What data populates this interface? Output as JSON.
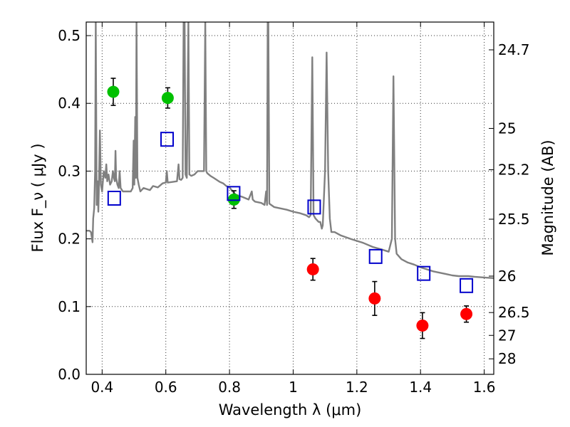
{
  "chart_data": {
    "type": "scatter",
    "xlabel": "Wavelength  λ (μm)",
    "ylabel": "Flux  F_ν  ( μJy )",
    "ylabel_right": "Magnitude (AB)",
    "xlim": [
      0.35,
      1.63
    ],
    "ylim": [
      0.0,
      0.52
    ],
    "grid": true,
    "x_ticks": [
      0.4,
      0.6,
      0.8,
      1.0,
      1.2,
      1.4,
      1.6
    ],
    "x_tick_labels": [
      "0.4",
      "0.6",
      "0.8",
      "1",
      "1.2",
      "1.4",
      "1.6"
    ],
    "y_ticks": [
      0.0,
      0.1,
      0.2,
      0.3,
      0.4,
      0.5
    ],
    "y_tick_labels": [
      "0.0",
      "0.1",
      "0.2",
      "0.3",
      "0.4",
      "0.5"
    ],
    "right_ticks": [
      {
        "label": "24.7",
        "flux": 0.479
      },
      {
        "label": "25",
        "flux": 0.363
      },
      {
        "label": "25.2",
        "flux": 0.302
      },
      {
        "label": "25.5",
        "flux": 0.229
      },
      {
        "label": "26",
        "flux": 0.145
      },
      {
        "label": "26.5",
        "flux": 0.0912
      },
      {
        "label": "27",
        "flux": 0.0575
      },
      {
        "label": "28",
        "flux": 0.0229
      }
    ],
    "series": [
      {
        "marker": "circle",
        "color": "#00c000",
        "points": [
          {
            "x": 0.435,
            "y": 0.417,
            "err": 0.02
          },
          {
            "x": 0.606,
            "y": 0.408,
            "err": 0.015
          },
          {
            "x": 0.814,
            "y": 0.258,
            "err": 0.013
          }
        ]
      },
      {
        "marker": "circle",
        "color": "#ff0000",
        "points": [
          {
            "x": 1.062,
            "y": 0.155,
            "err": 0.016
          },
          {
            "x": 1.256,
            "y": 0.112,
            "err": 0.025
          },
          {
            "x": 1.406,
            "y": 0.072,
            "err": 0.019
          },
          {
            "x": 1.544,
            "y": 0.089,
            "err": 0.012
          }
        ]
      },
      {
        "marker": "open-square",
        "color": "#0000cc",
        "points": [
          {
            "x": 0.438,
            "y": 0.26
          },
          {
            "x": 0.604,
            "y": 0.347
          },
          {
            "x": 0.813,
            "y": 0.267
          },
          {
            "x": 1.066,
            "y": 0.247
          },
          {
            "x": 1.259,
            "y": 0.174
          },
          {
            "x": 1.41,
            "y": 0.149
          },
          {
            "x": 1.544,
            "y": 0.131
          }
        ]
      },
      {
        "marker": "line",
        "color": "#808080",
        "points": [
          [
            0.35,
            0.212
          ],
          [
            0.36,
            0.212
          ],
          [
            0.365,
            0.21
          ],
          [
            0.37,
            0.195
          ],
          [
            0.372,
            0.23
          ],
          [
            0.375,
            0.245
          ],
          [
            0.378,
            0.3
          ],
          [
            0.38,
            0.52
          ],
          [
            0.383,
            0.25
          ],
          [
            0.386,
            0.285
          ],
          [
            0.388,
            0.24
          ],
          [
            0.39,
            0.28
          ],
          [
            0.393,
            0.36
          ],
          [
            0.396,
            0.28
          ],
          [
            0.4,
            0.27
          ],
          [
            0.405,
            0.3
          ],
          [
            0.41,
            0.29
          ],
          [
            0.413,
            0.31
          ],
          [
            0.416,
            0.285
          ],
          [
            0.42,
            0.295
          ],
          [
            0.425,
            0.28
          ],
          [
            0.43,
            0.285
          ],
          [
            0.434,
            0.3
          ],
          [
            0.437,
            0.29
          ],
          [
            0.44,
            0.285
          ],
          [
            0.442,
            0.33
          ],
          [
            0.444,
            0.29
          ],
          [
            0.448,
            0.28
          ],
          [
            0.452,
            0.275
          ],
          [
            0.455,
            0.3
          ],
          [
            0.458,
            0.275
          ],
          [
            0.465,
            0.27
          ],
          [
            0.48,
            0.27
          ],
          [
            0.49,
            0.27
          ],
          [
            0.496,
            0.275
          ],
          [
            0.499,
            0.345
          ],
          [
            0.501,
            0.28
          ],
          [
            0.504,
            0.38
          ],
          [
            0.506,
            0.29
          ],
          [
            0.508,
            0.52
          ],
          [
            0.511,
            0.29
          ],
          [
            0.515,
            0.28
          ],
          [
            0.52,
            0.27
          ],
          [
            0.53,
            0.275
          ],
          [
            0.55,
            0.272
          ],
          [
            0.56,
            0.278
          ],
          [
            0.575,
            0.276
          ],
          [
            0.59,
            0.282
          ],
          [
            0.6,
            0.283
          ],
          [
            0.603,
            0.3
          ],
          [
            0.606,
            0.283
          ],
          [
            0.62,
            0.284
          ],
          [
            0.635,
            0.285
          ],
          [
            0.64,
            0.31
          ],
          [
            0.643,
            0.288
          ],
          [
            0.648,
            0.287
          ],
          [
            0.653,
            0.29
          ],
          [
            0.656,
            0.52
          ],
          [
            0.659,
            0.52
          ],
          [
            0.662,
            0.295
          ],
          [
            0.666,
            0.29
          ],
          [
            0.671,
            0.52
          ],
          [
            0.674,
            0.295
          ],
          [
            0.68,
            0.293
          ],
          [
            0.69,
            0.295
          ],
          [
            0.7,
            0.3
          ],
          [
            0.72,
            0.3
          ],
          [
            0.724,
            0.52
          ],
          [
            0.727,
            0.3
          ],
          [
            0.73,
            0.297
          ],
          [
            0.74,
            0.293
          ],
          [
            0.75,
            0.29
          ],
          [
            0.77,
            0.284
          ],
          [
            0.78,
            0.282
          ],
          [
            0.79,
            0.278
          ],
          [
            0.8,
            0.276
          ],
          [
            0.81,
            0.27
          ],
          [
            0.82,
            0.265
          ],
          [
            0.84,
            0.262
          ],
          [
            0.86,
            0.258
          ],
          [
            0.87,
            0.27
          ],
          [
            0.873,
            0.258
          ],
          [
            0.88,
            0.255
          ],
          [
            0.9,
            0.253
          ],
          [
            0.91,
            0.25
          ],
          [
            0.915,
            0.27
          ],
          [
            0.918,
            0.25
          ],
          [
            0.92,
            0.52
          ],
          [
            0.922,
            0.52
          ],
          [
            0.925,
            0.252
          ],
          [
            0.94,
            0.247
          ],
          [
            0.96,
            0.245
          ],
          [
            0.98,
            0.243
          ],
          [
            1.0,
            0.24
          ],
          [
            1.02,
            0.238
          ],
          [
            1.04,
            0.235
          ],
          [
            1.05,
            0.232
          ],
          [
            1.055,
            0.235
          ],
          [
            1.06,
            0.468
          ],
          [
            1.064,
            0.235
          ],
          [
            1.07,
            0.23
          ],
          [
            1.08,
            0.225
          ],
          [
            1.085,
            0.225
          ],
          [
            1.09,
            0.215
          ],
          [
            1.093,
            0.22
          ],
          [
            1.1,
            0.3
          ],
          [
            1.105,
            0.475
          ],
          [
            1.11,
            0.3
          ],
          [
            1.115,
            0.23
          ],
          [
            1.12,
            0.21
          ],
          [
            1.13,
            0.21
          ],
          [
            1.15,
            0.205
          ],
          [
            1.18,
            0.2
          ],
          [
            1.2,
            0.197
          ],
          [
            1.22,
            0.194
          ],
          [
            1.25,
            0.188
          ],
          [
            1.28,
            0.184
          ],
          [
            1.3,
            0.181
          ],
          [
            1.31,
            0.2
          ],
          [
            1.315,
            0.44
          ],
          [
            1.32,
            0.2
          ],
          [
            1.325,
            0.178
          ],
          [
            1.34,
            0.17
          ],
          [
            1.36,
            0.165
          ],
          [
            1.38,
            0.162
          ],
          [
            1.4,
            0.158
          ],
          [
            1.42,
            0.155
          ],
          [
            1.44,
            0.152
          ],
          [
            1.46,
            0.15
          ],
          [
            1.48,
            0.148
          ],
          [
            1.5,
            0.146
          ],
          [
            1.52,
            0.145
          ],
          [
            1.55,
            0.145
          ],
          [
            1.57,
            0.144
          ],
          [
            1.6,
            0.143
          ],
          [
            1.63,
            0.142
          ]
        ]
      }
    ]
  }
}
